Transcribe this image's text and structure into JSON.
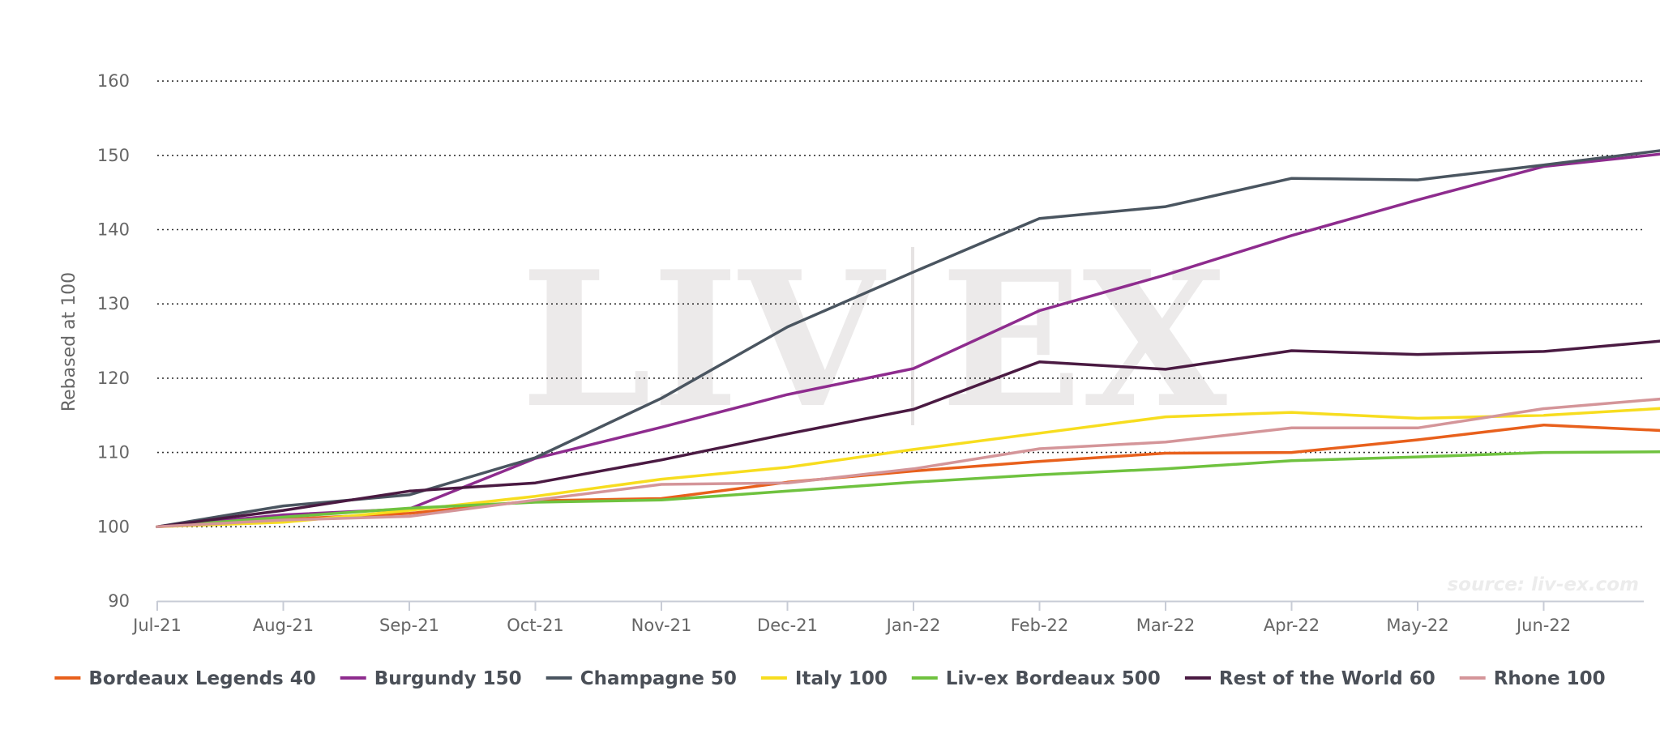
{
  "chart_data": {
    "type": "line",
    "ylabel": "Rebased at 100",
    "xlabel": "",
    "ylim": [
      90,
      165
    ],
    "yticks": [
      90,
      100,
      110,
      120,
      130,
      140,
      150,
      160
    ],
    "x_labels": [
      "Jul-21",
      "Aug-21",
      "Sep-21",
      "Oct-21",
      "Nov-21",
      "Dec-21",
      "Jan-22",
      "Feb-22",
      "Mar-22",
      "Apr-22",
      "May-22",
      "Jun-22"
    ],
    "x": [
      "Jul-21",
      "Aug-21",
      "Sep-21",
      "Oct-21",
      "Nov-21",
      "Dec-21",
      "Jan-22",
      "Feb-22",
      "Mar-22",
      "Apr-22",
      "May-22",
      "Jun-22",
      "Jul-22"
    ],
    "grid": true,
    "legend_position": "bottom",
    "watermark": {
      "left": "LIV",
      "right": "EX"
    },
    "source": "source: liv-ex.com",
    "series": [
      {
        "name": "Bordeaux Legends 40",
        "color": "#e8601c",
        "values": [
          100,
          101.0,
          101.8,
          103.5,
          103.8,
          106.0,
          107.5,
          108.8,
          109.9,
          110.0,
          111.7,
          113.7,
          112.9
        ]
      },
      {
        "name": "Burgundy 150",
        "color": "#8e2c8e",
        "values": [
          100,
          101.6,
          102.4,
          109.2,
          113.4,
          117.8,
          121.3,
          129.1,
          133.9,
          139.2,
          144.0,
          148.5,
          150.3
        ]
      },
      {
        "name": "Champagne 50",
        "color": "#4a5560",
        "values": [
          100,
          102.8,
          104.3,
          109.3,
          117.3,
          126.9,
          134.3,
          141.5,
          143.1,
          146.9,
          146.7,
          148.7,
          150.8
        ]
      },
      {
        "name": "Italy 100",
        "color": "#f7dd1f",
        "values": [
          100,
          100.6,
          102.2,
          104.1,
          106.4,
          108.0,
          110.4,
          112.6,
          114.8,
          115.4,
          114.6,
          115.0,
          116.0
        ]
      },
      {
        "name": "Liv-ex Bordeaux 500",
        "color": "#6fc23f",
        "values": [
          100,
          101.3,
          102.5,
          103.3,
          103.6,
          104.8,
          106.0,
          107.0,
          107.8,
          108.9,
          109.4,
          110.0,
          110.1
        ]
      },
      {
        "name": "Rest of the World 60",
        "color": "#4a1a42",
        "values": [
          100,
          102.2,
          104.8,
          105.9,
          109.0,
          112.5,
          115.8,
          122.2,
          121.2,
          123.7,
          123.2,
          123.6,
          125.1
        ]
      },
      {
        "name": "Rhone 100",
        "color": "#d49599",
        "values": [
          100,
          100.9,
          101.4,
          103.6,
          105.7,
          105.9,
          107.8,
          110.5,
          111.4,
          113.3,
          113.3,
          115.9,
          117.3
        ]
      }
    ]
  }
}
